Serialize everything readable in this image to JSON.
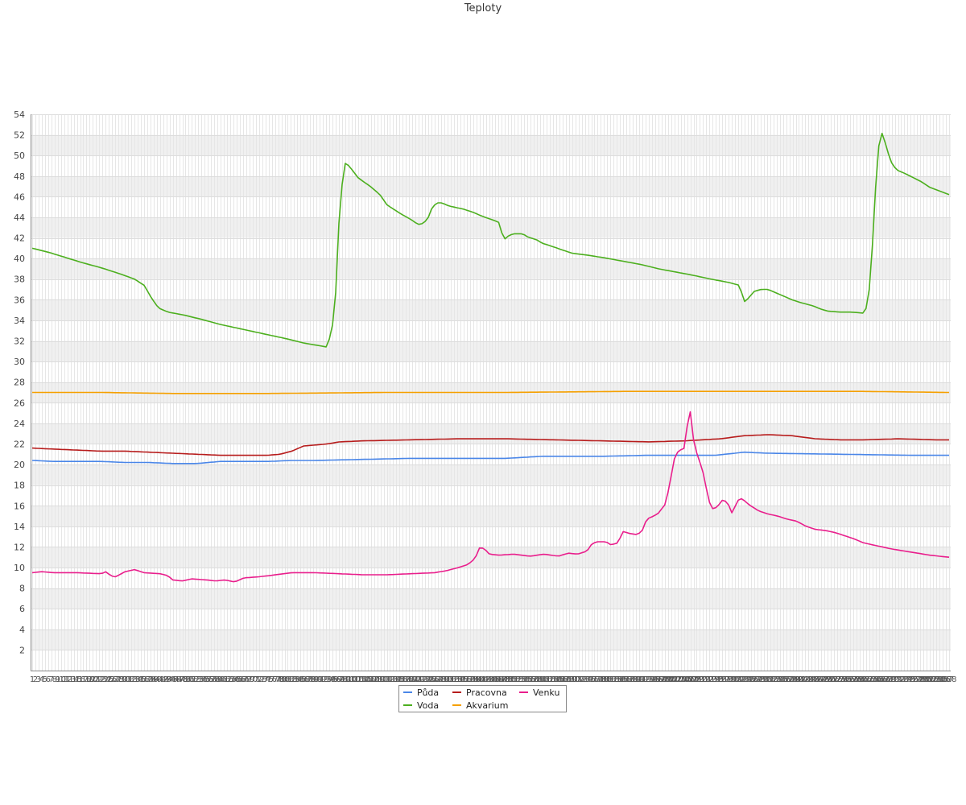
{
  "chart_data": {
    "type": "line",
    "title": "Teploty",
    "xlabel": "",
    "ylabel": "",
    "ylim": [
      0,
      54
    ],
    "yticks": [
      2,
      4,
      6,
      8,
      10,
      12,
      14,
      16,
      18,
      20,
      22,
      24,
      26,
      28,
      30,
      32,
      34,
      36,
      38,
      40,
      42,
      44,
      46,
      48,
      50,
      52,
      54
    ],
    "x_count": 288,
    "x_tick_labels_readable": [
      "1",
      "2",
      "3",
      "5",
      "6",
      "7",
      "8",
      "9",
      "288"
    ],
    "grid": true,
    "legend_position": "bottom-center",
    "series": [
      {
        "name": "Půda",
        "color": "#4a86e8",
        "anchors": [
          [
            1,
            20.4
          ],
          [
            10,
            20.3
          ],
          [
            30,
            20.3
          ],
          [
            40,
            20.2
          ],
          [
            50,
            20.2
          ],
          [
            60,
            20.1
          ],
          [
            70,
            20.1
          ],
          [
            80,
            20.3
          ],
          [
            100,
            20.3
          ],
          [
            110,
            20.4
          ],
          [
            120,
            20.4
          ],
          [
            140,
            20.5
          ],
          [
            160,
            20.6
          ],
          [
            200,
            20.6
          ],
          [
            215,
            20.8
          ],
          [
            240,
            20.8
          ],
          [
            260,
            20.9
          ],
          [
            288,
            20.9
          ],
          [
            300,
            21.2
          ],
          [
            310,
            21.1
          ],
          [
            340,
            21.0
          ],
          [
            370,
            20.9
          ],
          [
            380,
            20.9
          ],
          [
            386,
            20.9
          ]
        ],
        "anchors_x_max": 386
      },
      {
        "name": "Voda",
        "color": "#4caf1e",
        "anchors": [
          [
            1,
            41.0
          ],
          [
            8,
            40.6
          ],
          [
            15,
            40.1
          ],
          [
            22,
            39.6
          ],
          [
            30,
            39.1
          ],
          [
            38,
            38.5
          ],
          [
            44,
            38.0
          ],
          [
            48,
            37.4
          ],
          [
            51,
            36.2
          ],
          [
            54,
            35.2
          ],
          [
            58,
            34.8
          ],
          [
            65,
            34.5
          ],
          [
            72,
            34.1
          ],
          [
            80,
            33.6
          ],
          [
            90,
            33.1
          ],
          [
            100,
            32.6
          ],
          [
            108,
            32.2
          ],
          [
            115,
            31.8
          ],
          [
            120,
            31.6
          ],
          [
            125,
            31.4
          ],
          [
            128,
            34.5
          ],
          [
            130,
            44.5
          ],
          [
            132,
            49.3
          ],
          [
            134,
            49.0
          ],
          [
            138,
            47.8
          ],
          [
            143,
            47.0
          ],
          [
            147,
            46.2
          ],
          [
            150,
            45.2
          ],
          [
            156,
            44.3
          ],
          [
            160,
            43.8
          ],
          [
            163,
            43.3
          ],
          [
            165,
            43.4
          ],
          [
            167,
            43.8
          ],
          [
            169,
            45.0
          ],
          [
            171,
            45.4
          ],
          [
            173,
            45.4
          ],
          [
            176,
            45.1
          ],
          [
            182,
            44.8
          ],
          [
            186,
            44.5
          ],
          [
            190,
            44.1
          ],
          [
            195,
            43.7
          ],
          [
            197,
            43.5
          ],
          [
            199,
            41.8
          ],
          [
            201,
            42.2
          ],
          [
            203,
            42.4
          ],
          [
            207,
            42.4
          ],
          [
            209,
            42.1
          ],
          [
            213,
            41.8
          ],
          [
            215,
            41.5
          ],
          [
            219,
            41.2
          ],
          [
            224,
            40.8
          ],
          [
            228,
            40.5
          ],
          [
            235,
            40.3
          ],
          [
            243,
            40.0
          ],
          [
            250,
            39.7
          ],
          [
            257,
            39.4
          ],
          [
            264,
            39.0
          ],
          [
            271,
            38.7
          ],
          [
            278,
            38.4
          ],
          [
            286,
            38.0
          ],
          [
            293,
            37.7
          ],
          [
            298,
            37.4
          ],
          [
            300,
            35.8
          ],
          [
            302,
            36.2
          ],
          [
            304,
            36.8
          ],
          [
            307,
            37.0
          ],
          [
            310,
            37.0
          ],
          [
            313,
            36.7
          ],
          [
            317,
            36.3
          ],
          [
            320,
            36.0
          ],
          [
            324,
            35.7
          ],
          [
            329,
            35.4
          ],
          [
            332,
            35.1
          ],
          [
            335,
            34.9
          ],
          [
            340,
            34.8
          ],
          [
            345,
            34.8
          ],
          [
            350,
            34.7
          ],
          [
            352,
            35.5
          ],
          [
            354,
            42.0
          ],
          [
            356,
            50.5
          ],
          [
            358,
            52.3
          ],
          [
            360,
            50.5
          ],
          [
            362,
            49.2
          ],
          [
            364,
            48.6
          ],
          [
            368,
            48.2
          ],
          [
            374,
            47.5
          ],
          [
            378,
            46.9
          ],
          [
            386,
            46.2
          ]
        ],
        "anchors_x_max": 386
      },
      {
        "name": "Pracovna",
        "color": "#b71c1c",
        "anchors": [
          [
            1,
            21.6
          ],
          [
            10,
            21.5
          ],
          [
            20,
            21.4
          ],
          [
            30,
            21.3
          ],
          [
            40,
            21.3
          ],
          [
            50,
            21.2
          ],
          [
            60,
            21.1
          ],
          [
            70,
            21.0
          ],
          [
            80,
            20.9
          ],
          [
            90,
            20.9
          ],
          [
            100,
            20.9
          ],
          [
            105,
            21.0
          ],
          [
            110,
            21.3
          ],
          [
            115,
            21.8
          ],
          [
            120,
            21.9
          ],
          [
            125,
            22.0
          ],
          [
            130,
            22.2
          ],
          [
            140,
            22.3
          ],
          [
            160,
            22.4
          ],
          [
            180,
            22.5
          ],
          [
            200,
            22.5
          ],
          [
            220,
            22.4
          ],
          [
            240,
            22.3
          ],
          [
            260,
            22.2
          ],
          [
            275,
            22.3
          ],
          [
            290,
            22.5
          ],
          [
            300,
            22.8
          ],
          [
            310,
            22.9
          ],
          [
            320,
            22.8
          ],
          [
            330,
            22.5
          ],
          [
            340,
            22.4
          ],
          [
            350,
            22.4
          ],
          [
            365,
            22.5
          ],
          [
            380,
            22.4
          ],
          [
            386,
            22.4
          ]
        ],
        "anchors_x_max": 386
      },
      {
        "name": "Akvarium",
        "color": "#f5a000",
        "anchors": [
          [
            1,
            27.0
          ],
          [
            30,
            27.0
          ],
          [
            60,
            26.9
          ],
          [
            100,
            26.9
          ],
          [
            150,
            27.0
          ],
          [
            200,
            27.0
          ],
          [
            250,
            27.1
          ],
          [
            300,
            27.1
          ],
          [
            350,
            27.1
          ],
          [
            386,
            27.0
          ]
        ],
        "anchors_x_max": 386
      },
      {
        "name": "Venku",
        "color": "#e91e8c",
        "anchors": [
          [
            1,
            9.5
          ],
          [
            5,
            9.6
          ],
          [
            10,
            9.5
          ],
          [
            20,
            9.5
          ],
          [
            30,
            9.4
          ],
          [
            32,
            9.6
          ],
          [
            34,
            9.2
          ],
          [
            36,
            9.1
          ],
          [
            40,
            9.6
          ],
          [
            44,
            9.8
          ],
          [
            48,
            9.5
          ],
          [
            55,
            9.4
          ],
          [
            58,
            9.2
          ],
          [
            60,
            8.8
          ],
          [
            64,
            8.7
          ],
          [
            68,
            8.9
          ],
          [
            74,
            8.8
          ],
          [
            78,
            8.7
          ],
          [
            82,
            8.8
          ],
          [
            86,
            8.6
          ],
          [
            90,
            9.0
          ],
          [
            96,
            9.1
          ],
          [
            100,
            9.2
          ],
          [
            110,
            9.5
          ],
          [
            120,
            9.5
          ],
          [
            130,
            9.4
          ],
          [
            140,
            9.3
          ],
          [
            150,
            9.3
          ],
          [
            160,
            9.4
          ],
          [
            170,
            9.5
          ],
          [
            175,
            9.7
          ],
          [
            180,
            10.0
          ],
          [
            184,
            10.3
          ],
          [
            187,
            10.9
          ],
          [
            189,
            12.0
          ],
          [
            191,
            11.8
          ],
          [
            193,
            11.3
          ],
          [
            197,
            11.2
          ],
          [
            203,
            11.3
          ],
          [
            210,
            11.1
          ],
          [
            216,
            11.3
          ],
          [
            222,
            11.1
          ],
          [
            226,
            11.4
          ],
          [
            230,
            11.3
          ],
          [
            234,
            11.6
          ],
          [
            236,
            12.3
          ],
          [
            238,
            12.5
          ],
          [
            242,
            12.5
          ],
          [
            244,
            12.2
          ],
          [
            247,
            12.4
          ],
          [
            249,
            13.5
          ],
          [
            252,
            13.3
          ],
          [
            255,
            13.2
          ],
          [
            257,
            13.5
          ],
          [
            259,
            14.7
          ],
          [
            262,
            15.0
          ],
          [
            264,
            15.3
          ],
          [
            267,
            16.2
          ],
          [
            269,
            18.5
          ],
          [
            271,
            21.0
          ],
          [
            273,
            21.4
          ],
          [
            275,
            21.6
          ],
          [
            277,
            25.8
          ],
          [
            279,
            21.8
          ],
          [
            281,
            20.5
          ],
          [
            283,
            19.0
          ],
          [
            285,
            16.5
          ],
          [
            287,
            15.6
          ],
          [
            289,
            16.0
          ],
          [
            291,
            16.6
          ],
          [
            293,
            16.3
          ],
          [
            295,
            15.2
          ],
          [
            297,
            16.5
          ],
          [
            299,
            16.7
          ],
          [
            302,
            16.1
          ],
          [
            306,
            15.5
          ],
          [
            310,
            15.2
          ],
          [
            314,
            15.0
          ],
          [
            318,
            14.7
          ],
          [
            322,
            14.5
          ],
          [
            326,
            14.0
          ],
          [
            330,
            13.7
          ],
          [
            334,
            13.6
          ],
          [
            338,
            13.4
          ],
          [
            342,
            13.1
          ],
          [
            346,
            12.8
          ],
          [
            350,
            12.4
          ],
          [
            356,
            12.1
          ],
          [
            362,
            11.8
          ],
          [
            370,
            11.5
          ],
          [
            378,
            11.2
          ],
          [
            386,
            11.0
          ]
        ],
        "anchors_x_max": 386
      }
    ],
    "x_range_note": "",
    "voda_second_half": {
      "color": "#4caf1e",
      "anchors": []
    }
  }
}
